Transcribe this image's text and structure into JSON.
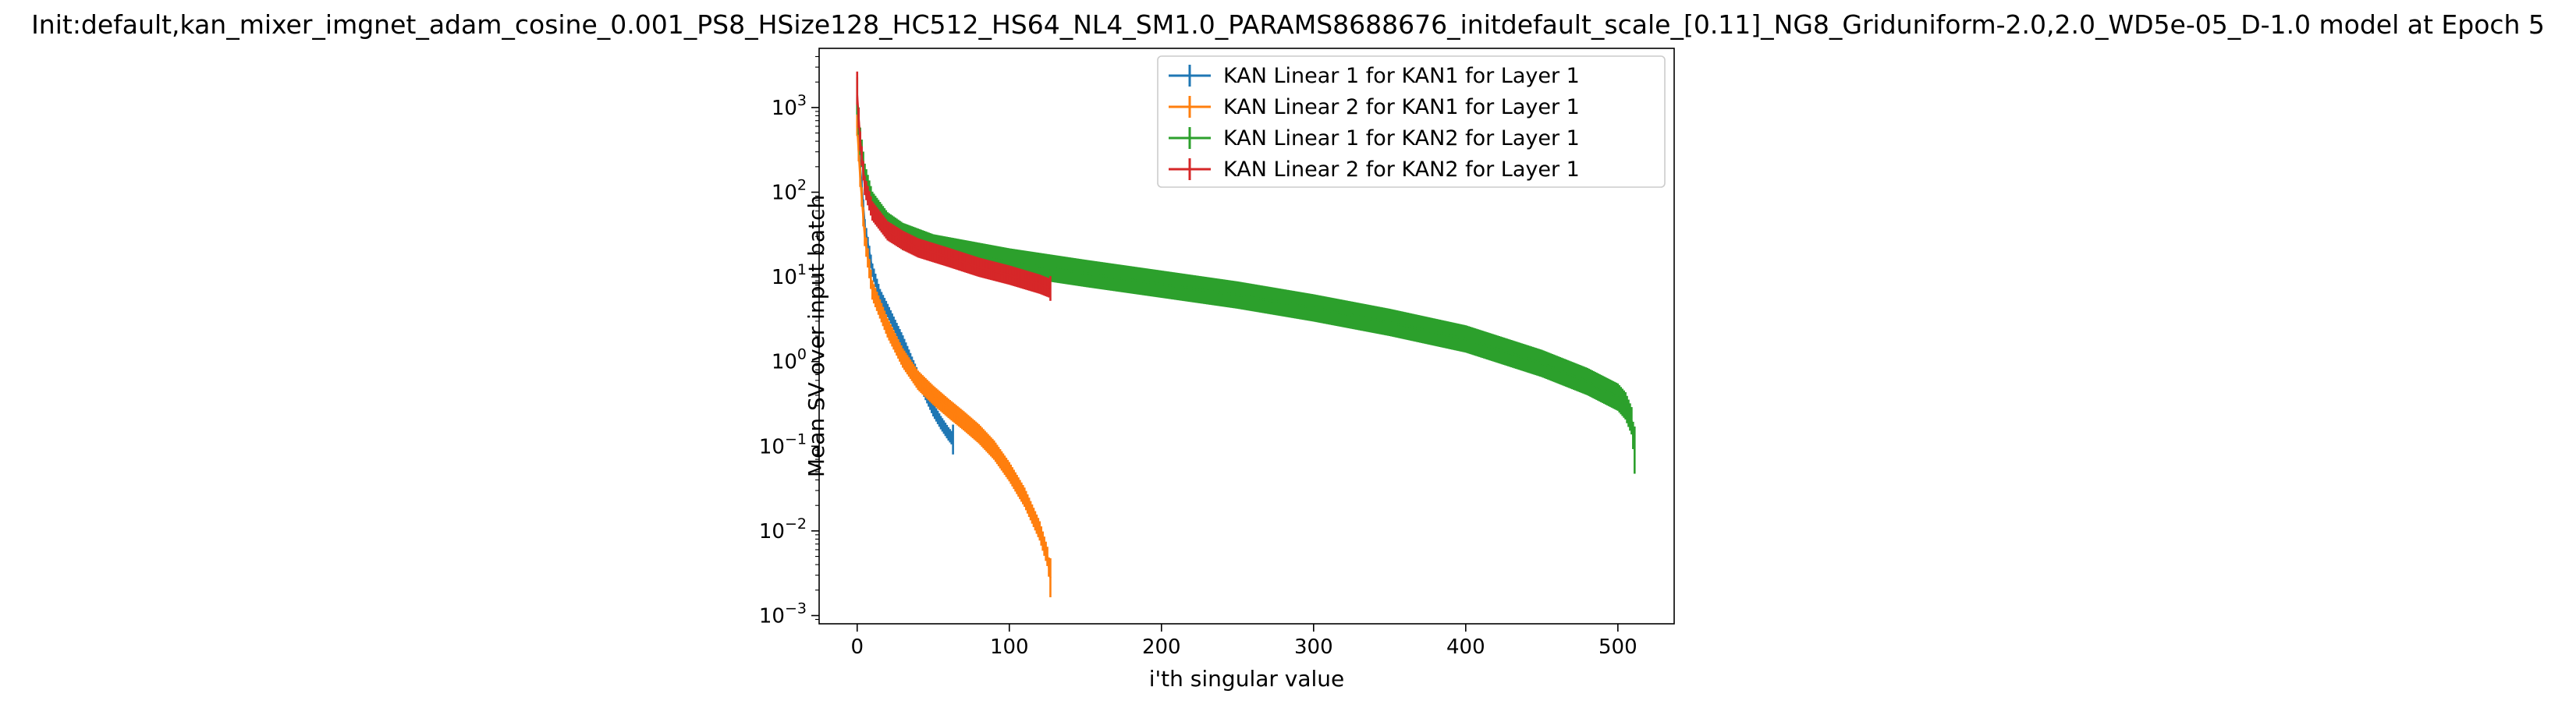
{
  "chart_data": {
    "type": "line",
    "title": "Init:default,kan_mixer_imgnet_adam_cosine_0.001_PS8_HSize128_HC512_HS64_NL4_SM1.0_PARAMS8688676_initdefault_scale_[0.11]_NG8_Griduniform-2.0,2.0_WD5e-05_D-1.0 model at Epoch 5",
    "xlabel": "i'th singular value",
    "ylabel": "Mean SV over input batch",
    "xlim": [
      -25,
      537
    ],
    "ylim": [
      0.0008,
      5000
    ],
    "yscale": "log",
    "xticks": [
      0,
      100,
      200,
      300,
      400,
      500
    ],
    "yticks": [
      {
        "value": 0.001,
        "base": "10",
        "exp": "−3"
      },
      {
        "value": 0.01,
        "base": "10",
        "exp": "−2"
      },
      {
        "value": 0.1,
        "base": "10",
        "exp": "−1"
      },
      {
        "value": 1,
        "base": "10",
        "exp": "0"
      },
      {
        "value": 10,
        "base": "10",
        "exp": "1"
      },
      {
        "value": 100,
        "base": "10",
        "exp": "2"
      },
      {
        "value": 1000,
        "base": "10",
        "exp": "3"
      }
    ],
    "grid": false,
    "legend_position": "top-right",
    "series": [
      {
        "name": "KAN Linear 1 for KAN1 for Layer 1",
        "color": "#1f77b4",
        "n": 64,
        "anchors_x": [
          0,
          2,
          5,
          10,
          15,
          20,
          25,
          30,
          35,
          40,
          45,
          50,
          55,
          60,
          63
        ],
        "anchors_y": [
          700,
          200,
          40,
          12,
          6,
          4,
          2.6,
          1.7,
          1.05,
          0.65,
          0.42,
          0.27,
          0.19,
          0.14,
          0.12
        ],
        "err_ratio": 1.2,
        "last_err_ratio": 1.5
      },
      {
        "name": "KAN Linear 2 for KAN1 for Layer 1",
        "color": "#ff7f0e",
        "n": 128,
        "anchors_x": [
          0,
          2,
          5,
          10,
          20,
          30,
          40,
          50,
          60,
          70,
          80,
          90,
          100,
          110,
          120,
          125,
          127
        ],
        "anchors_y": [
          600,
          150,
          30,
          7,
          2.5,
          1.1,
          0.6,
          0.4,
          0.28,
          0.2,
          0.14,
          0.09,
          0.05,
          0.025,
          0.01,
          0.005,
          0.0028
        ],
        "err_ratio": 1.3,
        "last_err_ratio": 1.7
      },
      {
        "name": "KAN Linear 1 for KAN2 for Layer 1",
        "color": "#2ca02c",
        "n": 512,
        "anchors_x": [
          0,
          2,
          5,
          10,
          20,
          30,
          50,
          100,
          150,
          200,
          250,
          300,
          350,
          400,
          450,
          480,
          500,
          505,
          509,
          511
        ],
        "anchors_y": [
          1200,
          400,
          150,
          70,
          40,
          30,
          22,
          15,
          11,
          8.2,
          6.1,
          4.3,
          2.9,
          1.85,
          0.95,
          0.58,
          0.38,
          0.3,
          0.2,
          0.09
        ],
        "err_ratio": 1.45,
        "last_err_ratio": 1.9
      },
      {
        "name": "KAN Linear 2 for KAN2 for Layer 1",
        "color": "#d62728",
        "n": 128,
        "anchors_x": [
          0,
          2,
          5,
          10,
          20,
          30,
          40,
          60,
          80,
          100,
          120,
          127
        ],
        "anchors_y": [
          1400,
          400,
          120,
          60,
          35,
          27,
          22,
          17,
          13,
          10.5,
          8.2,
          7.3
        ],
        "err_ratio": 1.3,
        "last_err_ratio": 1.4
      }
    ]
  }
}
